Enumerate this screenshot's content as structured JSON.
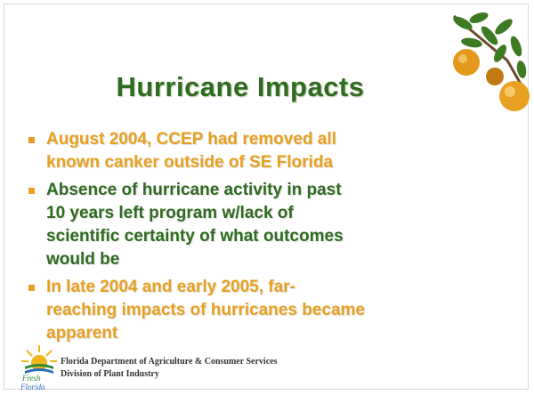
{
  "title": "Hurricane Impacts",
  "bullets": [
    {
      "lines": [
        "August 2004, CCEP had removed all",
        "known canker outside of SE Florida"
      ]
    },
    {
      "lines": [
        "Absence of hurricane activity in past",
        "10 years left program w/lack of",
        "scientific certainty of what outcomes",
        "would be"
      ]
    },
    {
      "lines": [
        "In late 2004 and early 2005, far-",
        "reaching impacts of hurricanes became",
        "apparent"
      ]
    }
  ],
  "footer": {
    "line1": "Florida Department of Agriculture & Consumer Services",
    "line2": "Division of Plant Industry",
    "logo": [
      "Fresh",
      "Florida"
    ]
  }
}
